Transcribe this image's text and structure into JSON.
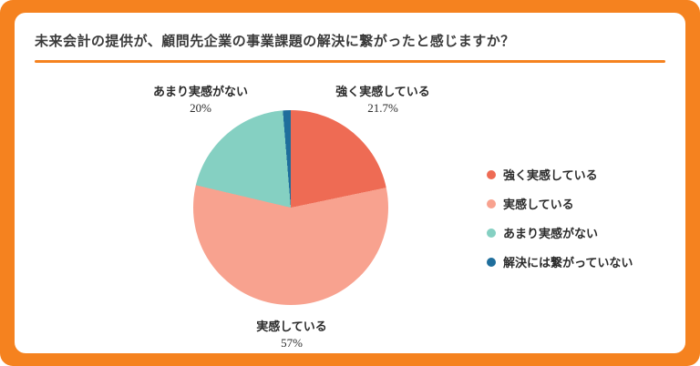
{
  "header": {
    "title": "未来会計の提供が、顧問先企業の事業課題の解決に繋がったと感じますか？"
  },
  "theme": {
    "frame_color": "#f5821f",
    "card_color": "#ffffff",
    "text_color": "#2b2b2b"
  },
  "chart_data": {
    "type": "pie",
    "title": "未来会計の提供が、顧問先企業の事業課題の解決に繋がったと感じますか？",
    "start_angle_deg": 0,
    "direction": "clockwise",
    "legend_position": "right",
    "segments": [
      {
        "label": "強く実感している",
        "value": 21.7,
        "pct_label": "21.7%",
        "color": "#ee6b54"
      },
      {
        "label": "実感している",
        "value": 57,
        "pct_label": "57%",
        "color": "#f8a28f"
      },
      {
        "label": "あまり実感がない",
        "value": 20,
        "pct_label": "20%",
        "color": "#85d0c2"
      },
      {
        "label": "解決には繋がっていない",
        "value": 1.3,
        "pct_label": "",
        "color": "#1f6e9c"
      }
    ]
  }
}
